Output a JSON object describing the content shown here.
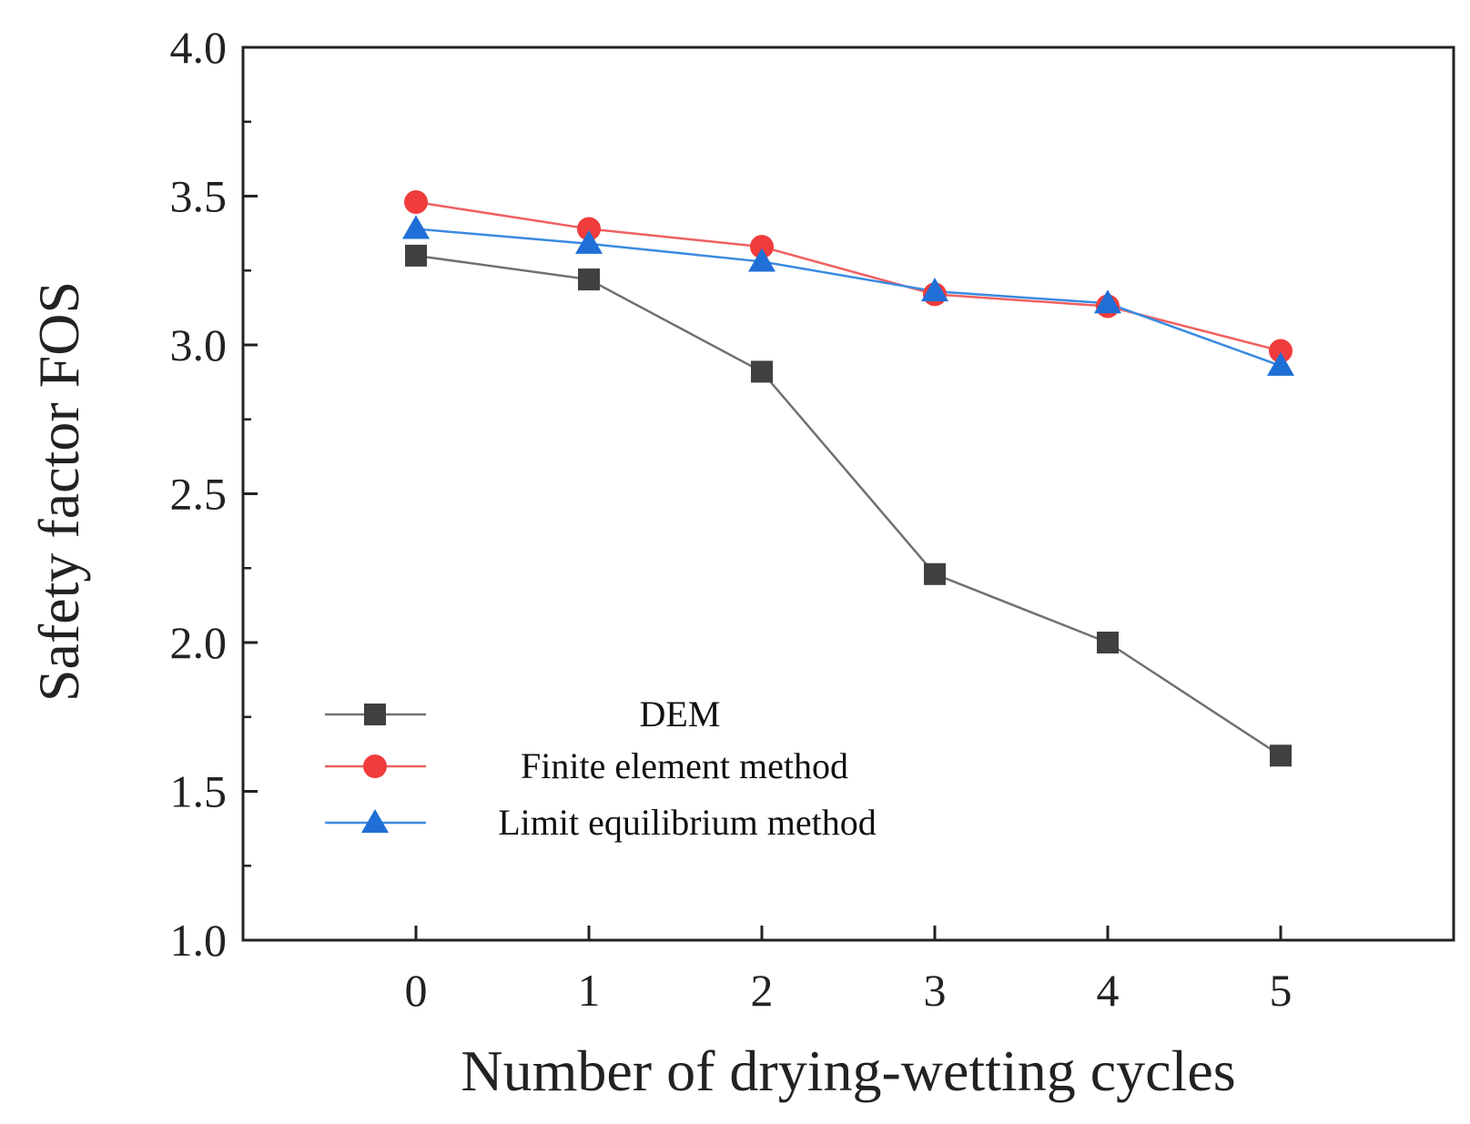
{
  "chart_data": {
    "type": "line",
    "title": "",
    "xlabel": "Number of drying-wetting cycles",
    "ylabel": "Safety factor FOS",
    "x": [
      0,
      1,
      2,
      3,
      4,
      5
    ],
    "x_tick_labels": [
      "0",
      "1",
      "2",
      "3",
      "4",
      "5"
    ],
    "xlim": [
      -1,
      6
    ],
    "ylim": [
      1.0,
      4.0
    ],
    "y_ticks": [
      1.0,
      1.5,
      2.0,
      2.5,
      3.0,
      3.5,
      4.0
    ],
    "y_tick_labels": [
      "1.0",
      "1.5",
      "2.0",
      "2.5",
      "3.0",
      "3.5",
      "4.0"
    ],
    "grid": false,
    "legend_position": "lower-left",
    "series": [
      {
        "name": "DEM",
        "marker": "square",
        "color": "#404040",
        "line_color": "#707070",
        "values": [
          3.3,
          3.22,
          2.91,
          2.23,
          2.0,
          1.62
        ]
      },
      {
        "name": "Finite element method",
        "marker": "circle",
        "color": "#f03c3c",
        "line_color": "#f06060",
        "values": [
          3.48,
          3.39,
          3.33,
          3.17,
          3.13,
          2.98
        ]
      },
      {
        "name": "Limit equilibrium method",
        "marker": "triangle",
        "color": "#1f6fd6",
        "line_color": "#3a8ae0",
        "values": [
          3.39,
          3.34,
          3.28,
          3.18,
          3.14,
          2.93
        ]
      }
    ]
  }
}
